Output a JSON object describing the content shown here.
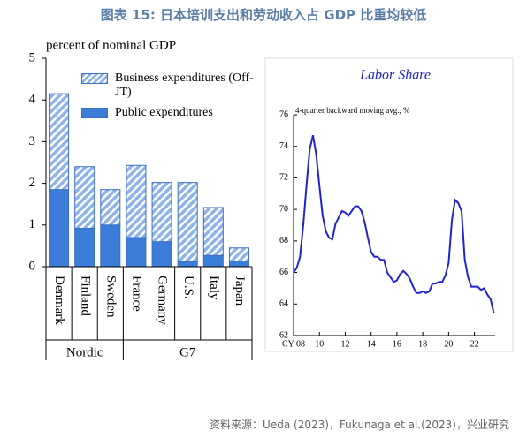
{
  "header": {
    "title": "图表 15: 日本培训支出和劳动收入占 GDP 比重均较低"
  },
  "footer": {
    "source": "资料来源：Ueda (2023)，Fukunaga et al.(2023)，兴业研究"
  },
  "chart_data": [
    {
      "type": "bar",
      "stacked": true,
      "ylabel": "percent of nominal GDP",
      "categories": [
        "Denmark",
        "Finland",
        "Sweden",
        "France",
        "Germany",
        "U.S.",
        "Italy",
        "Japan"
      ],
      "groups": [
        {
          "label": "Nordic",
          "count": 3
        },
        {
          "label": "G7",
          "count": 5
        }
      ],
      "series": [
        {
          "name": "Public expenditures",
          "color": "#3b7dd8",
          "values": [
            1.85,
            0.92,
            1.0,
            0.7,
            0.6,
            0.12,
            0.27,
            0.13
          ]
        },
        {
          "name": "Business expenditures (Off-JT)",
          "color": "#8db3ea",
          "hatch": true,
          "values": [
            2.3,
            1.48,
            0.85,
            1.73,
            1.42,
            1.9,
            1.15,
            0.32
          ]
        }
      ],
      "ylim": [
        0,
        5
      ],
      "yticks": [
        0,
        1,
        2,
        3,
        4,
        5
      ]
    },
    {
      "type": "line",
      "title": "Labor Share",
      "subtitle": "4-quarter backward moving avg., %",
      "x": [
        2008,
        2008.25,
        2008.5,
        2008.75,
        2009,
        2009.25,
        2009.5,
        2009.75,
        2010,
        2010.25,
        2010.5,
        2010.75,
        2011,
        2011.25,
        2011.5,
        2011.75,
        2012,
        2012.25,
        2012.5,
        2012.75,
        2013,
        2013.25,
        2013.5,
        2013.75,
        2014,
        2014.25,
        2014.5,
        2014.75,
        2015,
        2015.25,
        2015.5,
        2015.75,
        2016,
        2016.25,
        2016.5,
        2016.75,
        2017,
        2017.25,
        2017.5,
        2017.75,
        2018,
        2018.25,
        2018.5,
        2018.75,
        2019,
        2019.25,
        2019.5,
        2019.75,
        2020,
        2020.25,
        2020.5,
        2020.75,
        2021,
        2021.25,
        2021.5,
        2021.75,
        2022,
        2022.25,
        2022.5,
        2022.75,
        2023,
        2023.25,
        2023.5
      ],
      "series": [
        {
          "name": "Labor Share",
          "color": "#2323d0",
          "values": [
            66.0,
            66.3,
            67.0,
            69.0,
            71.5,
            73.8,
            74.7,
            73.5,
            71.5,
            69.6,
            68.6,
            68.2,
            68.1,
            69.1,
            69.5,
            69.9,
            69.8,
            69.6,
            69.9,
            70.2,
            70.2,
            69.9,
            69.2,
            68.2,
            67.3,
            67.0,
            67.0,
            66.8,
            66.8,
            66.0,
            65.7,
            65.4,
            65.5,
            65.9,
            66.1,
            65.9,
            65.6,
            65.1,
            64.7,
            64.7,
            64.8,
            64.7,
            64.8,
            65.3,
            65.3,
            65.4,
            65.4,
            65.8,
            66.6,
            69.3,
            70.6,
            70.4,
            69.9,
            66.8,
            65.7,
            65.1,
            65.1,
            65.1,
            64.9,
            65.0,
            64.6,
            64.3,
            63.4
          ]
        }
      ],
      "xlim": [
        2008,
        2023.6
      ],
      "xticks": [
        {
          "value": 2008,
          "label": "CY 08"
        },
        {
          "value": 2010,
          "label": "10"
        },
        {
          "value": 2012,
          "label": "12"
        },
        {
          "value": 2014,
          "label": "14"
        },
        {
          "value": 2016,
          "label": "16"
        },
        {
          "value": 2018,
          "label": "18"
        },
        {
          "value": 2020,
          "label": "20"
        },
        {
          "value": 2022,
          "label": "22"
        }
      ],
      "ylim": [
        62,
        76
      ],
      "yticks": [
        62,
        64,
        66,
        68,
        70,
        72,
        74,
        76
      ]
    }
  ]
}
